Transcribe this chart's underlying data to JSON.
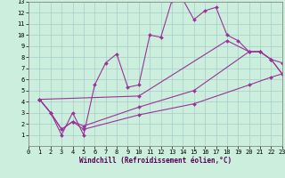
{
  "xlabel": "Windchill (Refroidissement éolien,°C)",
  "bg_color": "#cceedd",
  "line_color": "#993399",
  "xlim": [
    0,
    23
  ],
  "ylim": [
    0,
    13
  ],
  "xticks": [
    0,
    1,
    2,
    3,
    4,
    5,
    6,
    7,
    8,
    9,
    10,
    11,
    12,
    13,
    14,
    15,
    16,
    17,
    18,
    19,
    20,
    21,
    22,
    23
  ],
  "yticks": [
    1,
    2,
    3,
    4,
    5,
    6,
    7,
    8,
    9,
    10,
    11,
    12,
    13
  ],
  "series": [
    {
      "x": [
        1,
        2,
        3,
        4,
        5,
        6,
        7,
        8,
        9,
        10,
        11,
        12,
        13,
        14,
        15,
        16,
        17,
        18,
        19,
        20,
        21,
        22,
        23
      ],
      "y": [
        4.2,
        3.0,
        1.0,
        3.0,
        1.0,
        5.5,
        7.5,
        8.3,
        5.3,
        5.5,
        10.0,
        9.8,
        13.1,
        13.2,
        11.4,
        12.2,
        12.5,
        10.0,
        9.5,
        8.5,
        8.5,
        7.8,
        6.5
      ]
    },
    {
      "x": [
        1,
        2,
        3,
        4,
        5,
        10,
        15,
        20,
        22,
        23
      ],
      "y": [
        4.2,
        3.0,
        1.5,
        2.2,
        1.5,
        2.8,
        3.8,
        5.5,
        6.2,
        6.5
      ]
    },
    {
      "x": [
        1,
        2,
        3,
        4,
        5,
        10,
        15,
        20,
        21,
        22,
        23
      ],
      "y": [
        4.2,
        3.0,
        1.5,
        2.2,
        1.8,
        3.5,
        5.0,
        8.5,
        8.5,
        7.8,
        7.5
      ]
    },
    {
      "x": [
        1,
        10,
        18,
        20,
        21,
        22,
        23
      ],
      "y": [
        4.2,
        4.5,
        9.5,
        8.5,
        8.5,
        7.8,
        6.5
      ]
    }
  ]
}
